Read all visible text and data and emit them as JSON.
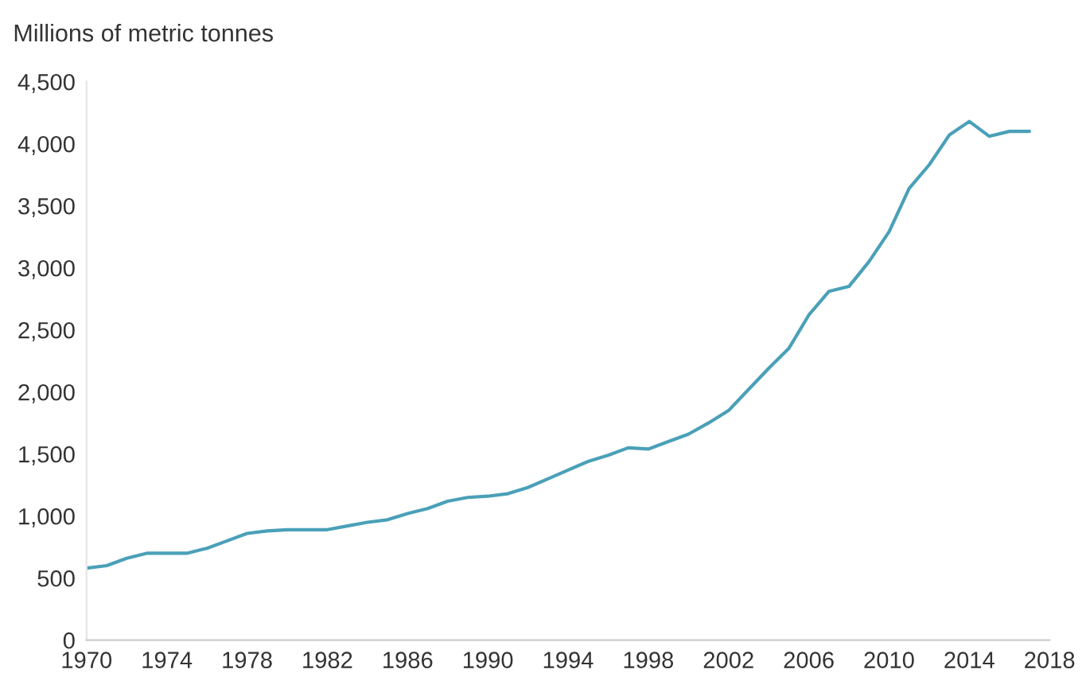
{
  "chart_data": {
    "type": "line",
    "ylabel": "Millions of metric tonnes",
    "x": [
      1970,
      1971,
      1972,
      1973,
      1974,
      1975,
      1976,
      1977,
      1978,
      1979,
      1980,
      1981,
      1982,
      1983,
      1984,
      1985,
      1986,
      1987,
      1988,
      1989,
      1990,
      1991,
      1992,
      1993,
      1994,
      1995,
      1996,
      1997,
      1998,
      1999,
      2000,
      2001,
      2002,
      2003,
      2004,
      2005,
      2006,
      2007,
      2008,
      2009,
      2010,
      2011,
      2012,
      2013,
      2014,
      2015,
      2016,
      2017
    ],
    "series": [
      {
        "color": "#4aa0b8",
        "values": [
          580,
          600,
          660,
          700,
          700,
          700,
          740,
          800,
          860,
          880,
          890,
          890,
          890,
          920,
          950,
          970,
          1020,
          1060,
          1120,
          1150,
          1160,
          1180,
          1230,
          1300,
          1370,
          1440,
          1490,
          1550,
          1540,
          1600,
          1660,
          1750,
          1850,
          2020,
          2190,
          2350,
          2620,
          2810,
          2850,
          3050,
          3290,
          3640,
          3830,
          4070,
          4180,
          4060,
          4100,
          4100
        ]
      }
    ],
    "xlim": [
      1970,
      2018
    ],
    "xticks": [
      1970,
      1974,
      1978,
      1982,
      1986,
      1990,
      1994,
      1998,
      2002,
      2006,
      2010,
      2014,
      2018
    ],
    "ylim": [
      0,
      4500
    ],
    "yticks": [
      {
        "value": 0,
        "label": "0"
      },
      {
        "value": 500,
        "label": "500"
      },
      {
        "value": 1000,
        "label": "1,000"
      },
      {
        "value": 1500,
        "label": "1,500"
      },
      {
        "value": 2000,
        "label": "2,000"
      },
      {
        "value": 2500,
        "label": "2,500"
      },
      {
        "value": 3000,
        "label": "3,000"
      },
      {
        "value": 3500,
        "label": "3,500"
      },
      {
        "value": 4000,
        "label": "4,000"
      },
      {
        "value": 4500,
        "label": "4,500"
      }
    ],
    "grid": false,
    "marker": "none",
    "line_style": "solid"
  }
}
